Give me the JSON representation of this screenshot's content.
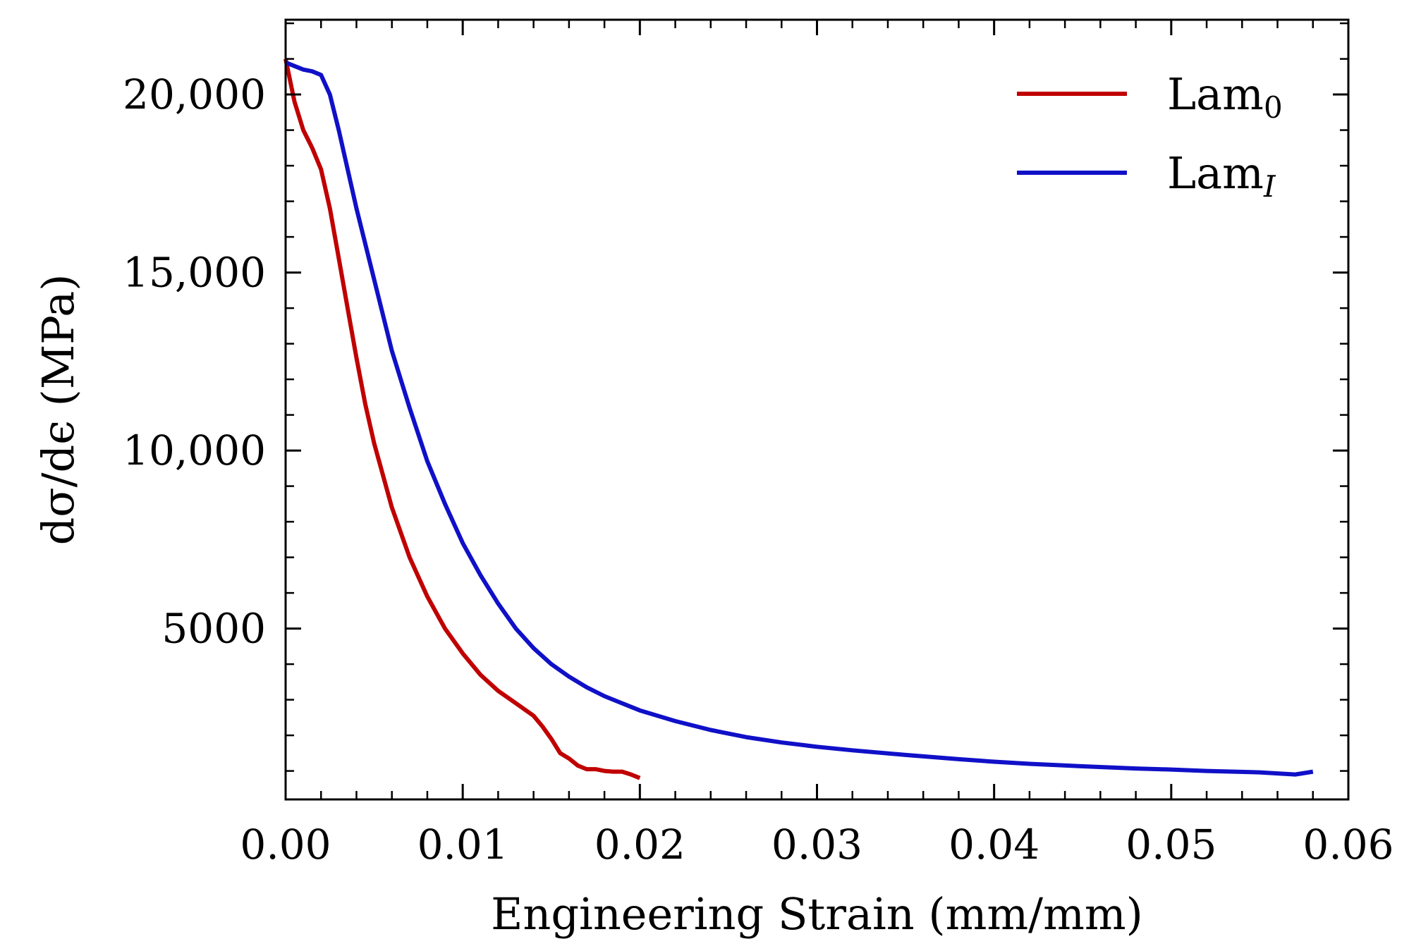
{
  "chart_data": {
    "type": "line",
    "title": "",
    "xlabel": "Engineering Strain (mm/mm)",
    "ylabel": "dσ/dϵ (MPa)",
    "xlim": [
      0.0,
      0.06
    ],
    "ylim": [
      200,
      22100
    ],
    "x_ticks": [
      0.0,
      0.01,
      0.02,
      0.03,
      0.04,
      0.05,
      0.06
    ],
    "x_tick_labels": [
      "0.00",
      "0.01",
      "0.02",
      "0.03",
      "0.04",
      "0.05",
      "0.06"
    ],
    "y_ticks": [
      5000,
      10000,
      15000,
      20000
    ],
    "y_tick_labels": [
      "5000",
      "10,000",
      "15,000",
      "20,000"
    ],
    "grid": false,
    "legend_position": "top-right",
    "series": [
      {
        "name": "Lam",
        "subscript": "0",
        "color": "#c00000",
        "x": [
          0.0,
          0.0005,
          0.001,
          0.0015,
          0.002,
          0.0025,
          0.003,
          0.0035,
          0.004,
          0.0045,
          0.005,
          0.006,
          0.007,
          0.008,
          0.009,
          0.01,
          0.011,
          0.012,
          0.013,
          0.014,
          0.0145,
          0.015,
          0.0155,
          0.016,
          0.0165,
          0.017,
          0.0175,
          0.018,
          0.0185,
          0.019,
          0.0195,
          0.02
        ],
        "y": [
          21000,
          19800,
          19000,
          18500,
          17900,
          16800,
          15400,
          14000,
          12600,
          11300,
          10200,
          8400,
          7000,
          5900,
          5000,
          4300,
          3700,
          3250,
          2900,
          2550,
          2250,
          1900,
          1500,
          1350,
          1150,
          1050,
          1050,
          1000,
          980,
          980,
          900,
          800
        ]
      },
      {
        "name": "Lam",
        "subscript": "I",
        "color": "#1010c8",
        "x": [
          0.0,
          0.0005,
          0.001,
          0.0015,
          0.002,
          0.0025,
          0.003,
          0.004,
          0.005,
          0.006,
          0.007,
          0.008,
          0.009,
          0.01,
          0.011,
          0.012,
          0.013,
          0.014,
          0.015,
          0.016,
          0.017,
          0.018,
          0.019,
          0.02,
          0.022,
          0.024,
          0.026,
          0.028,
          0.03,
          0.032,
          0.035,
          0.038,
          0.04,
          0.042,
          0.045,
          0.048,
          0.05,
          0.052,
          0.055,
          0.057,
          0.058
        ],
        "y": [
          20900,
          20800,
          20700,
          20650,
          20550,
          20000,
          19000,
          16800,
          14800,
          12800,
          11200,
          9700,
          8500,
          7400,
          6500,
          5700,
          5000,
          4450,
          4000,
          3650,
          3350,
          3100,
          2900,
          2700,
          2400,
          2150,
          1950,
          1800,
          1680,
          1580,
          1450,
          1330,
          1260,
          1200,
          1130,
          1070,
          1040,
          1000,
          960,
          900,
          980
        ]
      }
    ]
  }
}
